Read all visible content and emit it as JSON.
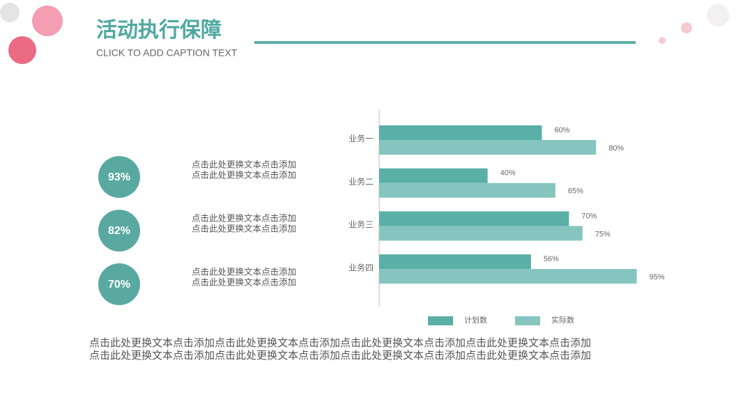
{
  "header": {
    "title": "活动执行保障",
    "caption": "CLICK TO ADD CAPTION TEXT"
  },
  "items": [
    {
      "value": "93%",
      "lines": [
        "点击此处更换文本点击添加",
        "点击此处更换文本点击添加"
      ]
    },
    {
      "value": "82%",
      "lines": [
        "点击此处更换文本点击添加",
        "点击此处更换文本点击添加"
      ]
    },
    {
      "value": "70%",
      "lines": [
        "点击此处更换文本点击添加",
        "点击此处更换文本点击添加"
      ]
    }
  ],
  "footer": {
    "lines": [
      "点击此处更换文本点击添加点击此处更换文本点击添加点击此处更换文本点击添加点击此处更换文本点击添加",
      "点击此处更换文本点击添加点击此处更换文本点击添加点击此处更换文本点击添加点击此处更换文本点击添加"
    ]
  },
  "chart_data": {
    "type": "hbar",
    "categories": [
      "业务一",
      "业务二",
      "业务三",
      "业务四"
    ],
    "series": [
      {
        "name": "计划数",
        "color": "#5aafa6",
        "values": [
          60,
          40,
          70,
          56
        ],
        "value_labels": [
          "60%",
          "40%",
          "70%",
          "56%"
        ]
      },
      {
        "name": "实际数",
        "color": "#86c5bf",
        "values": [
          80,
          65,
          75,
          95
        ],
        "value_labels": [
          "80%",
          "65%",
          "75%",
          "95%"
        ]
      }
    ],
    "xlim": [
      0,
      100
    ],
    "legend": "bottom"
  }
}
